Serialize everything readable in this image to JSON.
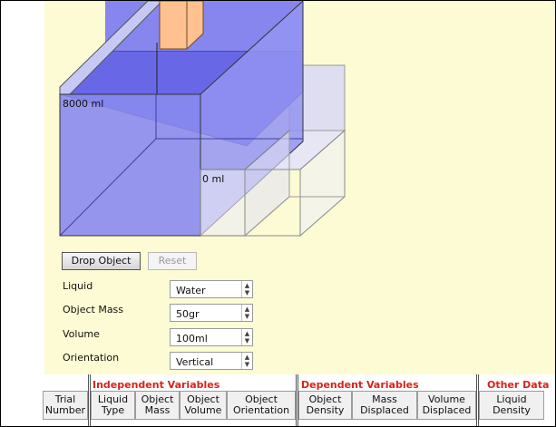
{
  "simulation": {
    "large_tank_level_label": "8000 ml",
    "overflow_tank_level_label": "0 ml"
  },
  "controls": {
    "drop_button_label": "Drop Object",
    "reset_button_label": "Reset",
    "reset_enabled": false,
    "liquid": {
      "label": "Liquid",
      "value": "Water"
    },
    "object_mass": {
      "label": "Object Mass",
      "value": "50gr"
    },
    "volume": {
      "label": "Volume",
      "value": "100ml"
    },
    "orientation": {
      "label": "Orientation",
      "value": "Vertical"
    }
  },
  "table": {
    "groups": {
      "independent": "Independent Variables",
      "dependent": "Dependent Variables",
      "other": "Other Data"
    },
    "columns": {
      "trial": [
        "Trial",
        "Number"
      ],
      "liquid_type": [
        "Liquid",
        "Type"
      ],
      "object_mass": [
        "Object",
        "Mass"
      ],
      "object_volume": [
        "Object",
        "Volume"
      ],
      "object_orientation": [
        "Object",
        "Orientation"
      ],
      "object_density": [
        "Object",
        "Density"
      ],
      "mass_displaced": [
        "Mass",
        "Displaced"
      ],
      "volume_displaced": [
        "Volume",
        "Displaced"
      ],
      "liquid_density": [
        "Liquid",
        "Density"
      ]
    }
  },
  "colors": {
    "background_panel": "#fdfbd3",
    "water": "#7f7ff0",
    "object": "#ffc18f",
    "header_accent": "#d9231a"
  },
  "icons": {
    "select_arrow": "up-down-chevron-icon"
  }
}
